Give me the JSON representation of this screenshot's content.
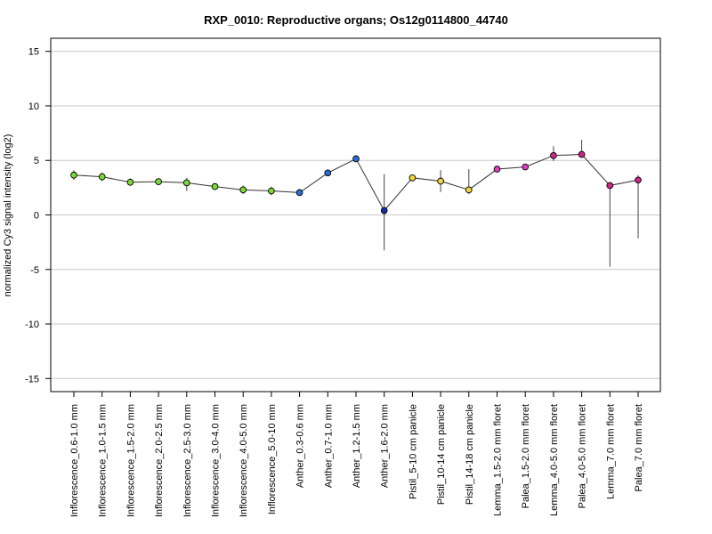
{
  "chart_data": {
    "type": "line",
    "title": "RXP_0010: Reproductive organs; Os12g0114800_44740",
    "xlabel": "",
    "ylabel": "normalized Cy3 signal intensity (log2)",
    "ylim": [
      -16.2,
      16.2
    ],
    "yticks": [
      -15,
      -10,
      -5,
      0,
      5,
      10,
      15
    ],
    "grid": true,
    "categories": [
      "Inflorescence_0.6-1.0 mm",
      "Inflorescence_1.0-1.5 mm",
      "Inflorescence_1.5-2.0 mm",
      "Inflorescence_2.0-2.5 mm",
      "Inflorescence_2.5-3.0 mm",
      "Inflorescence_3.0-4.0 mm",
      "Inflorescence_4.0-5.0 mm",
      "Inflorescence_5.0-10 mm",
      "Anther_0.3-0.6 mm",
      "Anther_0.7-1.0 mm",
      "Anther_1.2-1.5 mm",
      "Anther_1.6-2.0 mm",
      "Pistil_5-10 cm panicle",
      "Pistil_10-14 cm panicle",
      "Pistil_14-18 cm panicle",
      "Lemma_1.5-2.0 mm floret",
      "Palea_1.5-2.0 mm floret",
      "Lemma_4.0-5.0 mm floret",
      "Palea_4.0-5.0 mm floret",
      "Lemma_7.0 mm floret",
      "Palea_7.0 mm floret"
    ],
    "values": [
      3.65,
      3.5,
      3.0,
      3.05,
      2.95,
      2.6,
      2.3,
      2.2,
      2.05,
      3.85,
      5.15,
      0.4,
      3.4,
      3.1,
      2.3,
      4.2,
      4.4,
      5.45,
      5.55,
      2.7,
      3.2
    ],
    "error_low": [
      3.2,
      3.1,
      2.7,
      2.85,
      2.2,
      2.4,
      1.9,
      1.8,
      1.95,
      3.7,
      4.95,
      -3.25,
      3.1,
      2.1,
      1.9,
      4.0,
      4.2,
      4.95,
      5.3,
      -4.75,
      -2.15
    ],
    "error_high": [
      4.1,
      3.9,
      3.35,
      3.25,
      3.4,
      2.8,
      2.7,
      2.6,
      2.15,
      4.0,
      5.35,
      3.75,
      3.7,
      4.1,
      4.2,
      4.4,
      4.6,
      6.3,
      6.9,
      3.0,
      3.65
    ],
    "point_colors": [
      "#7ad83a",
      "#7ad83a",
      "#7ad83a",
      "#7ad83a",
      "#7ad83a",
      "#7ad83a",
      "#7ad83a",
      "#7ad83a",
      "#2a6fd6",
      "#2a6fd6",
      "#2a6fd6",
      "#1530a8",
      "#f2d63a",
      "#f2d63a",
      "#f2d63a",
      "#e040c0",
      "#e040c0",
      "#d02888",
      "#d02888",
      "#d02888",
      "#d02888"
    ],
    "line_color": "#333333",
    "grid_color": "#c8c8c8"
  }
}
